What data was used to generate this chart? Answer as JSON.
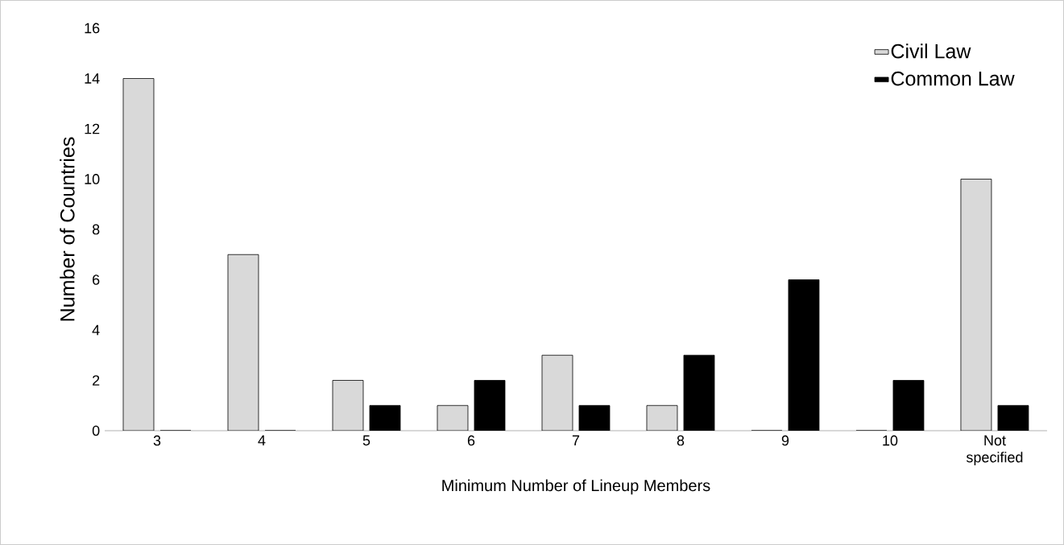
{
  "chart_data": {
    "type": "bar",
    "xlabel": "Minimum Number of Lineup Members",
    "ylabel": "Number of Countries",
    "categories": [
      "3",
      "4",
      "5",
      "6",
      "7",
      "8",
      "9",
      "10",
      "Not specified"
    ],
    "series": [
      {
        "name": "Civil Law",
        "color": "#d9d9d9",
        "values": [
          14,
          7,
          2,
          1,
          3,
          1,
          0,
          0,
          10
        ]
      },
      {
        "name": "Common Law",
        "color": "#000000",
        "values": [
          0,
          0,
          1,
          2,
          1,
          3,
          6,
          2,
          1
        ]
      }
    ],
    "ylim": [
      0,
      16
    ],
    "yticks": [
      0,
      2,
      4,
      6,
      8,
      10,
      12,
      14,
      16
    ],
    "grid": false,
    "legend": "top right"
  }
}
